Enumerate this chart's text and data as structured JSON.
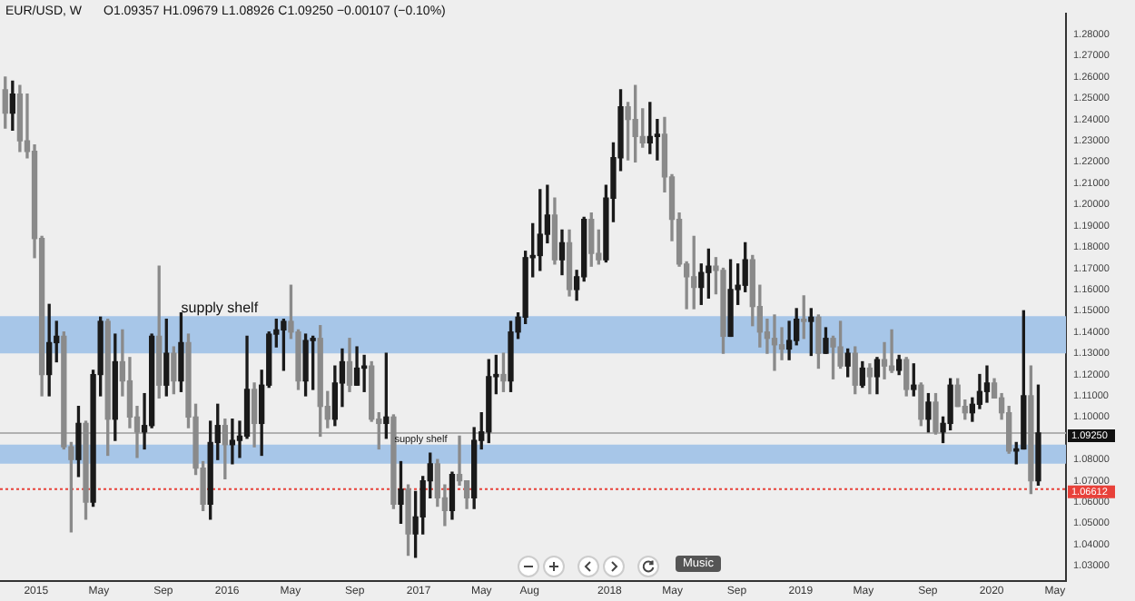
{
  "chart_data": {
    "type": "candlestick",
    "title": "EUR/USD, W",
    "subtitle": "O1.09357 H1.09679 L1.08926 C1.09250 −0.00107 (−0.10%)",
    "x": [
      "2014-11-03",
      "2014-11-17",
      "2014-12-01",
      "2014-12-15",
      "2014-12-29",
      "2015-01-12",
      "2015-01-26",
      "2015-02-09",
      "2015-02-23",
      "2015-03-09",
      "2015-03-23",
      "2015-04-06",
      "2015-04-20",
      "2015-05-04",
      "2015-05-18",
      "2015-06-01",
      "2015-06-15",
      "2015-06-29",
      "2015-07-13",
      "2015-07-27",
      "2015-08-10",
      "2015-08-24",
      "2015-09-07",
      "2015-09-21",
      "2015-10-05",
      "2015-10-19",
      "2015-11-02",
      "2015-11-16",
      "2015-11-30",
      "2015-12-14",
      "2015-12-28",
      "2016-01-11",
      "2016-01-25",
      "2016-02-08",
      "2016-02-22",
      "2016-03-07",
      "2016-03-21",
      "2016-04-04",
      "2016-04-18",
      "2016-05-02",
      "2016-05-16",
      "2016-05-30",
      "2016-06-13",
      "2016-06-27",
      "2016-07-11",
      "2016-07-25",
      "2016-08-08",
      "2016-08-22",
      "2016-09-05",
      "2016-09-19",
      "2016-10-03",
      "2016-10-17",
      "2016-10-31",
      "2016-11-14",
      "2016-11-28",
      "2016-12-12",
      "2016-12-26",
      "2017-01-09",
      "2017-01-23",
      "2017-02-06",
      "2017-02-20",
      "2017-03-06",
      "2017-03-20",
      "2017-04-03",
      "2017-04-17",
      "2017-05-01",
      "2017-05-15",
      "2017-05-29",
      "2017-06-12",
      "2017-06-26",
      "2017-07-10",
      "2017-07-24",
      "2017-08-07",
      "2017-08-21",
      "2017-09-04",
      "2017-09-18",
      "2017-10-02",
      "2017-10-16",
      "2017-10-30",
      "2017-11-13",
      "2017-11-27",
      "2017-12-11",
      "2017-12-25",
      "2018-01-08",
      "2018-01-22",
      "2018-02-05",
      "2018-02-19",
      "2018-03-05",
      "2018-03-19",
      "2018-04-02",
      "2018-04-16",
      "2018-04-30",
      "2018-05-14",
      "2018-05-28",
      "2018-06-11",
      "2018-06-25",
      "2018-07-09",
      "2018-07-23",
      "2018-08-06",
      "2018-08-20",
      "2018-09-03",
      "2018-09-17",
      "2018-10-01",
      "2018-10-15",
      "2018-10-29",
      "2018-11-12",
      "2018-11-26",
      "2018-12-10",
      "2018-12-24",
      "2019-01-07",
      "2019-01-21",
      "2019-02-04",
      "2019-02-18",
      "2019-03-04",
      "2019-03-18",
      "2019-04-01",
      "2019-04-15",
      "2019-04-29",
      "2019-05-13",
      "2019-05-27",
      "2019-06-10",
      "2019-06-24",
      "2019-07-08",
      "2019-07-22",
      "2019-08-05",
      "2019-08-19",
      "2019-09-02",
      "2019-09-16",
      "2019-09-30",
      "2019-10-14",
      "2019-10-28",
      "2019-11-11",
      "2019-11-25",
      "2019-12-09",
      "2019-12-23",
      "2020-01-06",
      "2020-01-20",
      "2020-02-03",
      "2020-02-17",
      "2020-03-02",
      "2020-03-16",
      "2020-03-30"
    ],
    "ohlc": [
      [
        1.254,
        1.26,
        1.236,
        1.243
      ],
      [
        1.243,
        1.258,
        1.235,
        1.252
      ],
      [
        1.252,
        1.256,
        1.225,
        1.23
      ],
      [
        1.23,
        1.252,
        1.222,
        1.225
      ],
      [
        1.225,
        1.228,
        1.175,
        1.184
      ],
      [
        1.184,
        1.185,
        1.11,
        1.12
      ],
      [
        1.12,
        1.153,
        1.11,
        1.135
      ],
      [
        1.135,
        1.145,
        1.126,
        1.138
      ],
      [
        1.138,
        1.14,
        1.085,
        1.086
      ],
      [
        1.086,
        1.088,
        1.046,
        1.08
      ],
      [
        1.08,
        1.105,
        1.072,
        1.097
      ],
      [
        1.097,
        1.098,
        1.052,
        1.06
      ],
      [
        1.06,
        1.122,
        1.058,
        1.12
      ],
      [
        1.12,
        1.147,
        1.11,
        1.145
      ],
      [
        1.145,
        1.146,
        1.082,
        1.099
      ],
      [
        1.099,
        1.139,
        1.089,
        1.126
      ],
      [
        1.126,
        1.141,
        1.11,
        1.117
      ],
      [
        1.117,
        1.128,
        1.095,
        1.1
      ],
      [
        1.1,
        1.105,
        1.081,
        1.093
      ],
      [
        1.093,
        1.111,
        1.085,
        1.096
      ],
      [
        1.096,
        1.139,
        1.095,
        1.138
      ],
      [
        1.138,
        1.171,
        1.109,
        1.115
      ],
      [
        1.115,
        1.146,
        1.11,
        1.13
      ],
      [
        1.13,
        1.133,
        1.111,
        1.117
      ],
      [
        1.117,
        1.149,
        1.112,
        1.135
      ],
      [
        1.135,
        1.139,
        1.095,
        1.1
      ],
      [
        1.1,
        1.106,
        1.073,
        1.076
      ],
      [
        1.076,
        1.079,
        1.056,
        1.059
      ],
      [
        1.059,
        1.098,
        1.052,
        1.088
      ],
      [
        1.088,
        1.106,
        1.08,
        1.096
      ],
      [
        1.096,
        1.099,
        1.071,
        1.087
      ],
      [
        1.087,
        1.099,
        1.078,
        1.089
      ],
      [
        1.089,
        1.098,
        1.081,
        1.091
      ],
      [
        1.091,
        1.138,
        1.09,
        1.113
      ],
      [
        1.113,
        1.116,
        1.086,
        1.097
      ],
      [
        1.097,
        1.122,
        1.082,
        1.115
      ],
      [
        1.115,
        1.14,
        1.114,
        1.139
      ],
      [
        1.139,
        1.146,
        1.133,
        1.141
      ],
      [
        1.141,
        1.146,
        1.122,
        1.145
      ],
      [
        1.145,
        1.162,
        1.137,
        1.14
      ],
      [
        1.14,
        1.141,
        1.113,
        1.117
      ],
      [
        1.117,
        1.139,
        1.11,
        1.136
      ],
      [
        1.136,
        1.138,
        1.113,
        1.137
      ],
      [
        1.137,
        1.143,
        1.091,
        1.105
      ],
      [
        1.105,
        1.112,
        1.095,
        1.099
      ],
      [
        1.099,
        1.124,
        1.096,
        1.116
      ],
      [
        1.116,
        1.132,
        1.105,
        1.126
      ],
      [
        1.126,
        1.137,
        1.112,
        1.115
      ],
      [
        1.115,
        1.133,
        1.115,
        1.123
      ],
      [
        1.123,
        1.129,
        1.112,
        1.124
      ],
      [
        1.124,
        1.126,
        1.098,
        1.099
      ],
      [
        1.099,
        1.102,
        1.085,
        1.097
      ],
      [
        1.097,
        1.13,
        1.09,
        1.1
      ],
      [
        1.1,
        1.101,
        1.057,
        1.059
      ],
      [
        1.059,
        1.079,
        1.05,
        1.066
      ],
      [
        1.066,
        1.068,
        1.035,
        1.045
      ],
      [
        1.045,
        1.065,
        1.034,
        1.053
      ],
      [
        1.053,
        1.072,
        1.045,
        1.07
      ],
      [
        1.07,
        1.083,
        1.062,
        1.078
      ],
      [
        1.078,
        1.08,
        1.058,
        1.062
      ],
      [
        1.062,
        1.068,
        1.049,
        1.056
      ],
      [
        1.056,
        1.074,
        1.052,
        1.073
      ],
      [
        1.073,
        1.091,
        1.068,
        1.07
      ],
      [
        1.07,
        1.07,
        1.057,
        1.062
      ],
      [
        1.062,
        1.095,
        1.057,
        1.089
      ],
      [
        1.089,
        1.102,
        1.085,
        1.093
      ],
      [
        1.093,
        1.127,
        1.088,
        1.119
      ],
      [
        1.119,
        1.129,
        1.111,
        1.12
      ],
      [
        1.12,
        1.13,
        1.112,
        1.117
      ],
      [
        1.117,
        1.145,
        1.112,
        1.14
      ],
      [
        1.14,
        1.149,
        1.137,
        1.147
      ],
      [
        1.147,
        1.178,
        1.144,
        1.175
      ],
      [
        1.175,
        1.191,
        1.166,
        1.176
      ],
      [
        1.176,
        1.207,
        1.169,
        1.186
      ],
      [
        1.186,
        1.209,
        1.182,
        1.195
      ],
      [
        1.195,
        1.203,
        1.172,
        1.174
      ],
      [
        1.174,
        1.188,
        1.167,
        1.182
      ],
      [
        1.182,
        1.188,
        1.157,
        1.16
      ],
      [
        1.16,
        1.169,
        1.155,
        1.166
      ],
      [
        1.166,
        1.194,
        1.164,
        1.193
      ],
      [
        1.193,
        1.196,
        1.171,
        1.177
      ],
      [
        1.177,
        1.188,
        1.172,
        1.174
      ],
      [
        1.174,
        1.209,
        1.173,
        1.203
      ],
      [
        1.203,
        1.229,
        1.192,
        1.222
      ],
      [
        1.222,
        1.254,
        1.216,
        1.246
      ],
      [
        1.246,
        1.248,
        1.221,
        1.24
      ],
      [
        1.24,
        1.256,
        1.22,
        1.232
      ],
      [
        1.232,
        1.245,
        1.227,
        1.229
      ],
      [
        1.229,
        1.248,
        1.224,
        1.232
      ],
      [
        1.232,
        1.24,
        1.221,
        1.233
      ],
      [
        1.233,
        1.241,
        1.206,
        1.213
      ],
      [
        1.213,
        1.214,
        1.183,
        1.193
      ],
      [
        1.193,
        1.196,
        1.171,
        1.172
      ],
      [
        1.172,
        1.173,
        1.151,
        1.166
      ],
      [
        1.166,
        1.185,
        1.151,
        1.161
      ],
      [
        1.161,
        1.172,
        1.153,
        1.168
      ],
      [
        1.168,
        1.179,
        1.156,
        1.171
      ],
      [
        1.171,
        1.175,
        1.158,
        1.169
      ],
      [
        1.169,
        1.17,
        1.13,
        1.138
      ],
      [
        1.138,
        1.174,
        1.138,
        1.16
      ],
      [
        1.16,
        1.172,
        1.153,
        1.162
      ],
      [
        1.162,
        1.182,
        1.159,
        1.174
      ],
      [
        1.174,
        1.176,
        1.143,
        1.152
      ],
      [
        1.152,
        1.162,
        1.133,
        1.14
      ],
      [
        1.14,
        1.146,
        1.13,
        1.137
      ],
      [
        1.137,
        1.148,
        1.122,
        1.134
      ],
      [
        1.134,
        1.142,
        1.127,
        1.132
      ],
      [
        1.132,
        1.145,
        1.127,
        1.136
      ],
      [
        1.136,
        1.151,
        1.134,
        1.146
      ],
      [
        1.146,
        1.157,
        1.137,
        1.145
      ],
      [
        1.145,
        1.151,
        1.129,
        1.147
      ],
      [
        1.147,
        1.148,
        1.123,
        1.13
      ],
      [
        1.13,
        1.142,
        1.13,
        1.137
      ],
      [
        1.137,
        1.138,
        1.118,
        1.133
      ],
      [
        1.133,
        1.145,
        1.123,
        1.124
      ],
      [
        1.124,
        1.132,
        1.119,
        1.13
      ],
      [
        1.13,
        1.133,
        1.111,
        1.115
      ],
      [
        1.115,
        1.126,
        1.114,
        1.123
      ],
      [
        1.123,
        1.125,
        1.111,
        1.119
      ],
      [
        1.119,
        1.128,
        1.111,
        1.127
      ],
      [
        1.127,
        1.135,
        1.118,
        1.124
      ],
      [
        1.124,
        1.141,
        1.121,
        1.122
      ],
      [
        1.122,
        1.129,
        1.12,
        1.127
      ],
      [
        1.127,
        1.128,
        1.11,
        1.113
      ],
      [
        1.113,
        1.125,
        1.11,
        1.115
      ],
      [
        1.115,
        1.116,
        1.096,
        1.099
      ],
      [
        1.099,
        1.111,
        1.093,
        1.107
      ],
      [
        1.107,
        1.111,
        1.092,
        1.093
      ],
      [
        1.093,
        1.1,
        1.088,
        1.097
      ],
      [
        1.097,
        1.118,
        1.094,
        1.115
      ],
      [
        1.115,
        1.118,
        1.105,
        1.105
      ],
      [
        1.105,
        1.108,
        1.099,
        1.102
      ],
      [
        1.102,
        1.109,
        1.098,
        1.106
      ],
      [
        1.106,
        1.12,
        1.104,
        1.112
      ],
      [
        1.112,
        1.124,
        1.107,
        1.116
      ],
      [
        1.116,
        1.118,
        1.109,
        1.109
      ],
      [
        1.109,
        1.111,
        1.099,
        1.102
      ],
      [
        1.102,
        1.105,
        1.083,
        1.084
      ],
      [
        1.084,
        1.088,
        1.078,
        1.085
      ],
      [
        1.085,
        1.15,
        1.085,
        1.11
      ],
      [
        1.11,
        1.124,
        1.064,
        1.07
      ],
      [
        1.07,
        1.115,
        1.068,
        1.0925
      ]
    ],
    "colors": [
      "#8a8a8a",
      "#1a1a1a",
      "#8a8a8a",
      "#8a8a8a",
      "#8a8a8a",
      "#8a8a8a",
      "#1a1a1a",
      "#1a1a1a",
      "#8a8a8a",
      "#8a8a8a",
      "#1a1a1a",
      "#8a8a8a",
      "#1a1a1a",
      "#1a1a1a",
      "#8a8a8a",
      "#1a1a1a",
      "#8a8a8a",
      "#8a8a8a",
      "#8a8a8a",
      "#1a1a1a",
      "#1a1a1a",
      "#8a8a8a",
      "#1a1a1a",
      "#8a8a8a",
      "#1a1a1a",
      "#8a8a8a",
      "#8a8a8a",
      "#8a8a8a",
      "#1a1a1a",
      "#1a1a1a",
      "#8a8a8a",
      "#1a1a1a",
      "#1a1a1a",
      "#1a1a1a",
      "#8a8a8a",
      "#1a1a1a",
      "#1a1a1a",
      "#1a1a1a",
      "#1a1a1a",
      "#8a8a8a",
      "#8a8a8a",
      "#1a1a1a",
      "#1a1a1a",
      "#8a8a8a",
      "#8a8a8a",
      "#1a1a1a",
      "#1a1a1a",
      "#8a8a8a",
      "#1a1a1a",
      "#1a1a1a",
      "#8a8a8a",
      "#8a8a8a",
      "#1a1a1a",
      "#8a8a8a",
      "#1a1a1a",
      "#8a8a8a",
      "#1a1a1a",
      "#1a1a1a",
      "#1a1a1a",
      "#8a8a8a",
      "#8a8a8a",
      "#1a1a1a",
      "#8a8a8a",
      "#8a8a8a",
      "#1a1a1a",
      "#1a1a1a",
      "#1a1a1a",
      "#1a1a1a",
      "#8a8a8a",
      "#1a1a1a",
      "#1a1a1a",
      "#1a1a1a",
      "#1a1a1a",
      "#1a1a1a",
      "#1a1a1a",
      "#8a8a8a",
      "#1a1a1a",
      "#8a8a8a",
      "#1a1a1a",
      "#1a1a1a",
      "#8a8a8a",
      "#8a8a8a",
      "#1a1a1a",
      "#1a1a1a",
      "#1a1a1a",
      "#8a8a8a",
      "#8a8a8a",
      "#8a8a8a",
      "#1a1a1a",
      "#1a1a1a",
      "#8a8a8a",
      "#8a8a8a",
      "#8a8a8a",
      "#8a8a8a",
      "#8a8a8a",
      "#1a1a1a",
      "#1a1a1a",
      "#8a8a8a",
      "#8a8a8a",
      "#1a1a1a",
      "#1a1a1a",
      "#1a1a1a",
      "#8a8a8a",
      "#8a8a8a",
      "#8a8a8a",
      "#8a8a8a",
      "#8a8a8a",
      "#1a1a1a",
      "#1a1a1a",
      "#8a8a8a",
      "#1a1a1a",
      "#8a8a8a",
      "#1a1a1a",
      "#8a8a8a",
      "#8a8a8a",
      "#1a1a1a",
      "#8a8a8a",
      "#1a1a1a",
      "#8a8a8a",
      "#1a1a1a",
      "#8a8a8a",
      "#8a8a8a",
      "#1a1a1a",
      "#8a8a8a",
      "#1a1a1a",
      "#8a8a8a",
      "#1a1a1a",
      "#8a8a8a",
      "#1a1a1a",
      "#1a1a1a",
      "#8a8a8a",
      "#8a8a8a",
      "#1a1a1a",
      "#1a1a1a",
      "#1a1a1a",
      "#8a8a8a",
      "#8a8a8a",
      "#8a8a8a",
      "#1a1a1a",
      "#1a1a1a",
      "#8a8a8a",
      "#1a1a1a"
    ],
    "xlim": [
      "2014-10-24",
      "2020-05-22"
    ],
    "xticks": [
      {
        "value": "2015-01-01",
        "label": "2015"
      },
      {
        "value": "2015-05-01",
        "label": "May"
      },
      {
        "value": "2015-09-01",
        "label": "Sep"
      },
      {
        "value": "2016-01-01",
        "label": "2016"
      },
      {
        "value": "2016-05-01",
        "label": "May"
      },
      {
        "value": "2016-09-01",
        "label": "Sep"
      },
      {
        "value": "2017-01-01",
        "label": "2017"
      },
      {
        "value": "2017-05-01",
        "label": "May"
      },
      {
        "value": "2017-08-01",
        "label": "Aug"
      },
      {
        "value": "2018-01-01",
        "label": "2018"
      },
      {
        "value": "2018-05-01",
        "label": "May"
      },
      {
        "value": "2018-09-01",
        "label": "Sep"
      },
      {
        "value": "2019-01-01",
        "label": "2019"
      },
      {
        "value": "2019-05-01",
        "label": "May"
      },
      {
        "value": "2019-09-01",
        "label": "Sep"
      },
      {
        "value": "2020-01-01",
        "label": "2020"
      },
      {
        "value": "2020-05-01",
        "label": "May"
      }
    ],
    "ylim": [
      1.023,
      1.29
    ],
    "yticks": [
      {
        "value": 1.03,
        "label": "1.03000"
      },
      {
        "value": 1.04,
        "label": "1.04000"
      },
      {
        "value": 1.05,
        "label": "1.05000"
      },
      {
        "value": 1.06,
        "label": "1.06000"
      },
      {
        "value": 1.07,
        "label": "1.07000"
      },
      {
        "value": 1.08,
        "label": "1.08000"
      },
      {
        "value": 1.1,
        "label": "1.10000"
      },
      {
        "value": 1.11,
        "label": "1.11000"
      },
      {
        "value": 1.12,
        "label": "1.12000"
      },
      {
        "value": 1.13,
        "label": "1.13000"
      },
      {
        "value": 1.14,
        "label": "1.14000"
      },
      {
        "value": 1.15,
        "label": "1.15000"
      },
      {
        "value": 1.16,
        "label": "1.16000"
      },
      {
        "value": 1.17,
        "label": "1.17000"
      },
      {
        "value": 1.18,
        "label": "1.18000"
      },
      {
        "value": 1.19,
        "label": "1.19000"
      },
      {
        "value": 1.2,
        "label": "1.20000"
      },
      {
        "value": 1.21,
        "label": "1.21000"
      },
      {
        "value": 1.22,
        "label": "1.22000"
      },
      {
        "value": 1.23,
        "label": "1.23000"
      },
      {
        "value": 1.24,
        "label": "1.24000"
      },
      {
        "value": 1.25,
        "label": "1.25000"
      },
      {
        "value": 1.26,
        "label": "1.26000"
      },
      {
        "value": 1.27,
        "label": "1.27000"
      },
      {
        "value": 1.28,
        "label": "1.28000"
      }
    ],
    "bands": [
      {
        "axis": "y",
        "from": 1.13,
        "to": 1.1475,
        "label": "supply shelf",
        "color": "#a7c6e8"
      },
      {
        "axis": "y",
        "from": 1.078,
        "to": 1.087,
        "label": "supply shelf",
        "color": "#a7c6e8"
      }
    ],
    "ref_lines": [
      {
        "axis": "y",
        "value": 1.0925,
        "label": "1.09250",
        "color": "#b0b0b0",
        "line_style": "solid"
      },
      {
        "axis": "y",
        "value": 1.06612,
        "label": "1.06612",
        "color": "#e8413a",
        "line_style": "dotted"
      }
    ],
    "grid": false,
    "annotations": [
      "Music"
    ]
  }
}
